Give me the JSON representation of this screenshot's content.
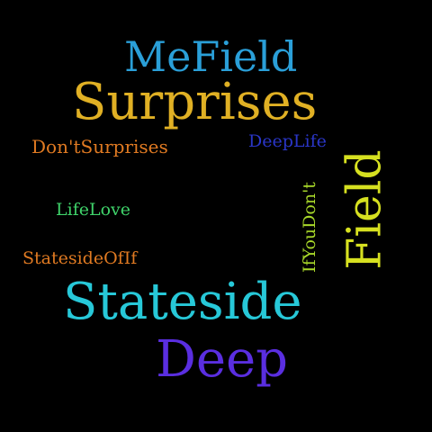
{
  "words": [
    {
      "text": "MeField",
      "color": "#2a9fd8"
    },
    {
      "text": "Surprises",
      "color": "#e0b024"
    },
    {
      "text": "Don'tSurprises",
      "color": "#e07a22"
    },
    {
      "text": "DeepLife",
      "color": "#2a36c8"
    },
    {
      "text": "LifeLove",
      "color": "#3fd36a"
    },
    {
      "text": "IfYouDon't",
      "color": "#a8d82a"
    },
    {
      "text": "Field",
      "color": "#d6e020"
    },
    {
      "text": "StatesideOfIf",
      "color": "#e07a22"
    },
    {
      "text": "Stateside",
      "color": "#27c8d8"
    },
    {
      "text": "Deep",
      "color": "#5a2ee0"
    }
  ]
}
